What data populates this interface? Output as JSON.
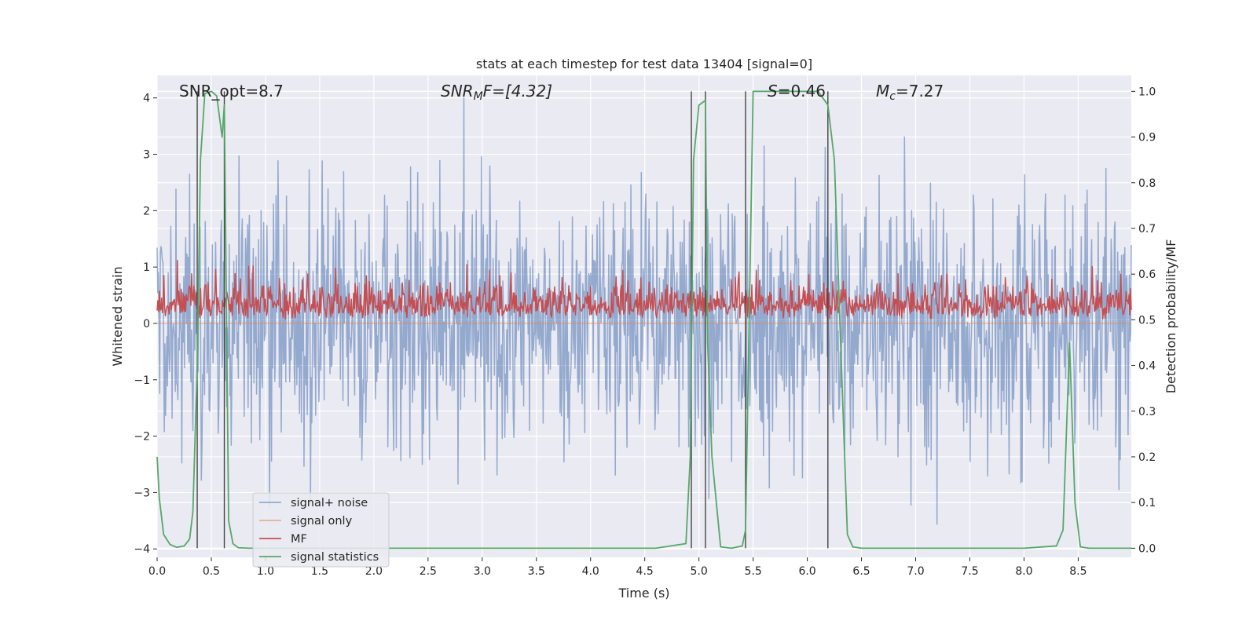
{
  "chart_data": {
    "type": "line",
    "title": "stats at each timestep for test data 13404 [signal=0]",
    "xlabel": "Time (s)",
    "ylabel": "Whitened strain",
    "ylabel_right": "Detection probability/MF",
    "xlim": [
      0,
      8.99
    ],
    "ylim": [
      -4.15,
      4.4
    ],
    "ylim_right": [
      -0.02,
      1.035
    ],
    "x_ticks": [
      "0.0",
      "0.5",
      "1.0",
      "1.5",
      "2.0",
      "2.5",
      "3.0",
      "3.5",
      "4.0",
      "4.5",
      "5.0",
      "5.5",
      "6.0",
      "6.5",
      "7.0",
      "7.5",
      "8.0",
      "8.5"
    ],
    "y_ticks": [
      "4",
      "3",
      "2",
      "1",
      "0",
      "−1",
      "−2",
      "−3",
      "−4"
    ],
    "y_ticks_right": [
      "1.0",
      "0.9",
      "0.8",
      "0.7",
      "0.6",
      "0.5",
      "0.4",
      "0.3",
      "0.2",
      "0.1",
      "0.0"
    ],
    "grid": true,
    "legend_position": "lower-left",
    "annotations": {
      "snr_opt": "SNR_opt=8.7",
      "snr_mf_symbol": "SNR",
      "snr_mf_sub": "M",
      "snr_mf_rest": "F=[4.32]",
      "s_symbol": "S",
      "s_value": "=0.46",
      "mc_symbol": "M",
      "mc_sub": "c",
      "mc_value": "=7.27"
    },
    "vertical_lines_x": [
      0.37,
      0.62,
      4.93,
      5.06,
      5.43,
      6.19
    ],
    "series": [
      {
        "name": "signal+ noise",
        "color": "#4c72b0",
        "opacity": 0.55,
        "axis": "left",
        "style": "noise",
        "amplitude": "≈ ±4",
        "n_samples": 1500
      },
      {
        "name": "signal only",
        "color": "#dd8452",
        "opacity": 0.55,
        "axis": "left",
        "style": "flat",
        "values": "0"
      },
      {
        "name": "MF",
        "color": "#c44e52",
        "axis": "right",
        "style": "noise",
        "range": [
          0.5,
          0.62
        ]
      },
      {
        "name": "signal statistics",
        "color": "#55a868",
        "axis": "right",
        "x": [
          0.0,
          0.02,
          0.06,
          0.12,
          0.18,
          0.25,
          0.3,
          0.33,
          0.37,
          0.4,
          0.44,
          0.5,
          0.55,
          0.6,
          0.62,
          0.66,
          0.7,
          0.75,
          0.85,
          1.0,
          2.0,
          3.0,
          4.0,
          4.6,
          4.88,
          4.92,
          4.95,
          5.0,
          5.06,
          5.08,
          5.12,
          5.2,
          5.3,
          5.4,
          5.43,
          5.5,
          5.6,
          6.0,
          6.1,
          6.19,
          6.25,
          6.3,
          6.37,
          6.42,
          6.5,
          7.0,
          8.0,
          8.3,
          8.36,
          8.42,
          8.47,
          8.52,
          8.6,
          8.99
        ],
        "y": [
          0.2,
          0.11,
          0.03,
          0.008,
          0.002,
          0.005,
          0.02,
          0.08,
          0.4,
          0.85,
          0.995,
          1.0,
          0.99,
          0.9,
          0.97,
          0.06,
          0.01,
          0.001,
          0.0,
          0.0,
          0.0,
          0.0,
          0.0,
          0.0,
          0.01,
          0.2,
          0.85,
          0.97,
          0.98,
          0.45,
          0.2,
          0.003,
          0.0,
          0.005,
          0.04,
          1.0,
          1.0,
          1.0,
          1.0,
          0.97,
          0.85,
          0.5,
          0.03,
          0.003,
          0.0,
          0.0,
          0.0,
          0.005,
          0.04,
          0.45,
          0.1,
          0.003,
          0.0,
          0.0
        ]
      }
    ]
  }
}
